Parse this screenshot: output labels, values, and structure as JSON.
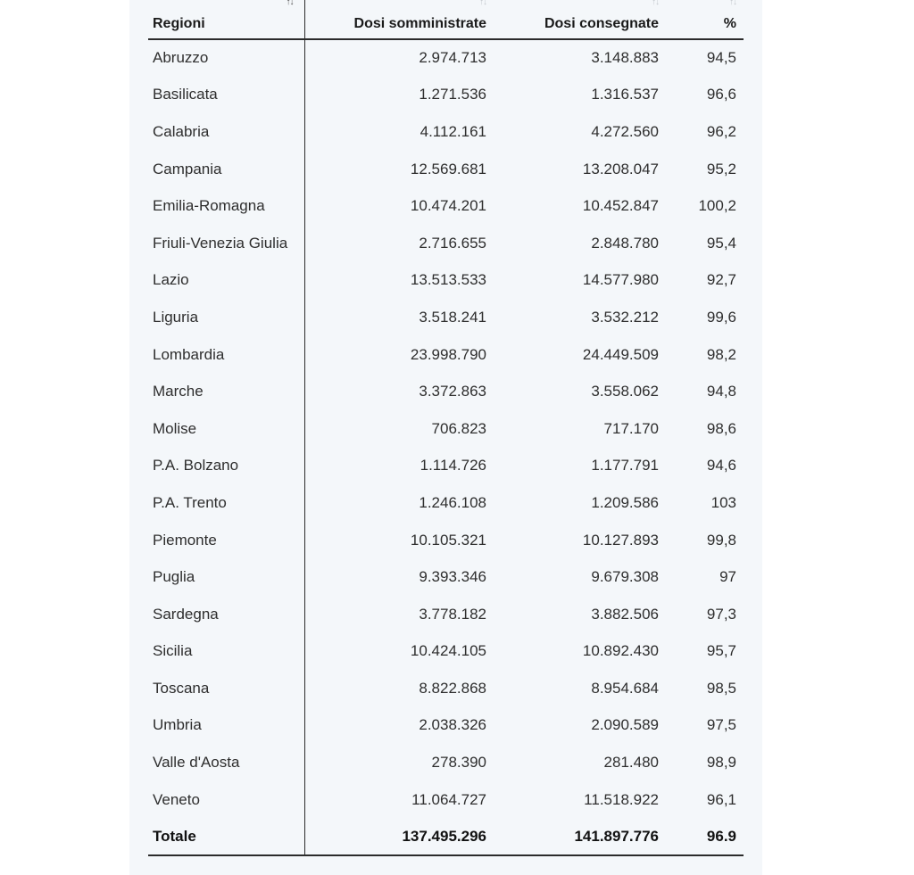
{
  "table": {
    "headers": [
      "Regioni",
      "Dosi somministrate",
      "Dosi consegnate",
      "%"
    ],
    "sort_icon": "↑↓",
    "rows": [
      [
        "Abruzzo",
        "2.974.713",
        "3.148.883",
        "94,5"
      ],
      [
        "Basilicata",
        "1.271.536",
        "1.316.537",
        "96,6"
      ],
      [
        "Calabria",
        "4.112.161",
        "4.272.560",
        "96,2"
      ],
      [
        "Campania",
        "12.569.681",
        "13.208.047",
        "95,2"
      ],
      [
        "Emilia-Romagna",
        "10.474.201",
        "10.452.847",
        "100,2"
      ],
      [
        "Friuli-Venezia Giulia",
        "2.716.655",
        "2.848.780",
        "95,4"
      ],
      [
        "Lazio",
        "13.513.533",
        "14.577.980",
        "92,7"
      ],
      [
        "Liguria",
        "3.518.241",
        "3.532.212",
        "99,6"
      ],
      [
        "Lombardia",
        "23.998.790",
        "24.449.509",
        "98,2"
      ],
      [
        "Marche",
        "3.372.863",
        "3.558.062",
        "94,8"
      ],
      [
        "Molise",
        "706.823",
        "717.170",
        "98,6"
      ],
      [
        "P.A. Bolzano",
        "1.114.726",
        "1.177.791",
        "94,6"
      ],
      [
        "P.A. Trento",
        "1.246.108",
        "1.209.586",
        "103"
      ],
      [
        "Piemonte",
        "10.105.321",
        "10.127.893",
        "99,8"
      ],
      [
        "Puglia",
        "9.393.346",
        "9.679.308",
        "97"
      ],
      [
        "Sardegna",
        "3.778.182",
        "3.882.506",
        "97,3"
      ],
      [
        "Sicilia",
        "10.424.105",
        "10.892.430",
        "95,7"
      ],
      [
        "Toscana",
        "8.822.868",
        "8.954.684",
        "98,5"
      ],
      [
        "Umbria",
        "2.038.326",
        "2.090.589",
        "97,5"
      ],
      [
        "Valle d'Aosta",
        "278.390",
        "281.480",
        "98,9"
      ],
      [
        "Veneto",
        "11.064.727",
        "11.518.922",
        "96,1"
      ]
    ],
    "total": [
      "Totale",
      "137.495.296",
      "141.897.776",
      "96.9"
    ]
  }
}
